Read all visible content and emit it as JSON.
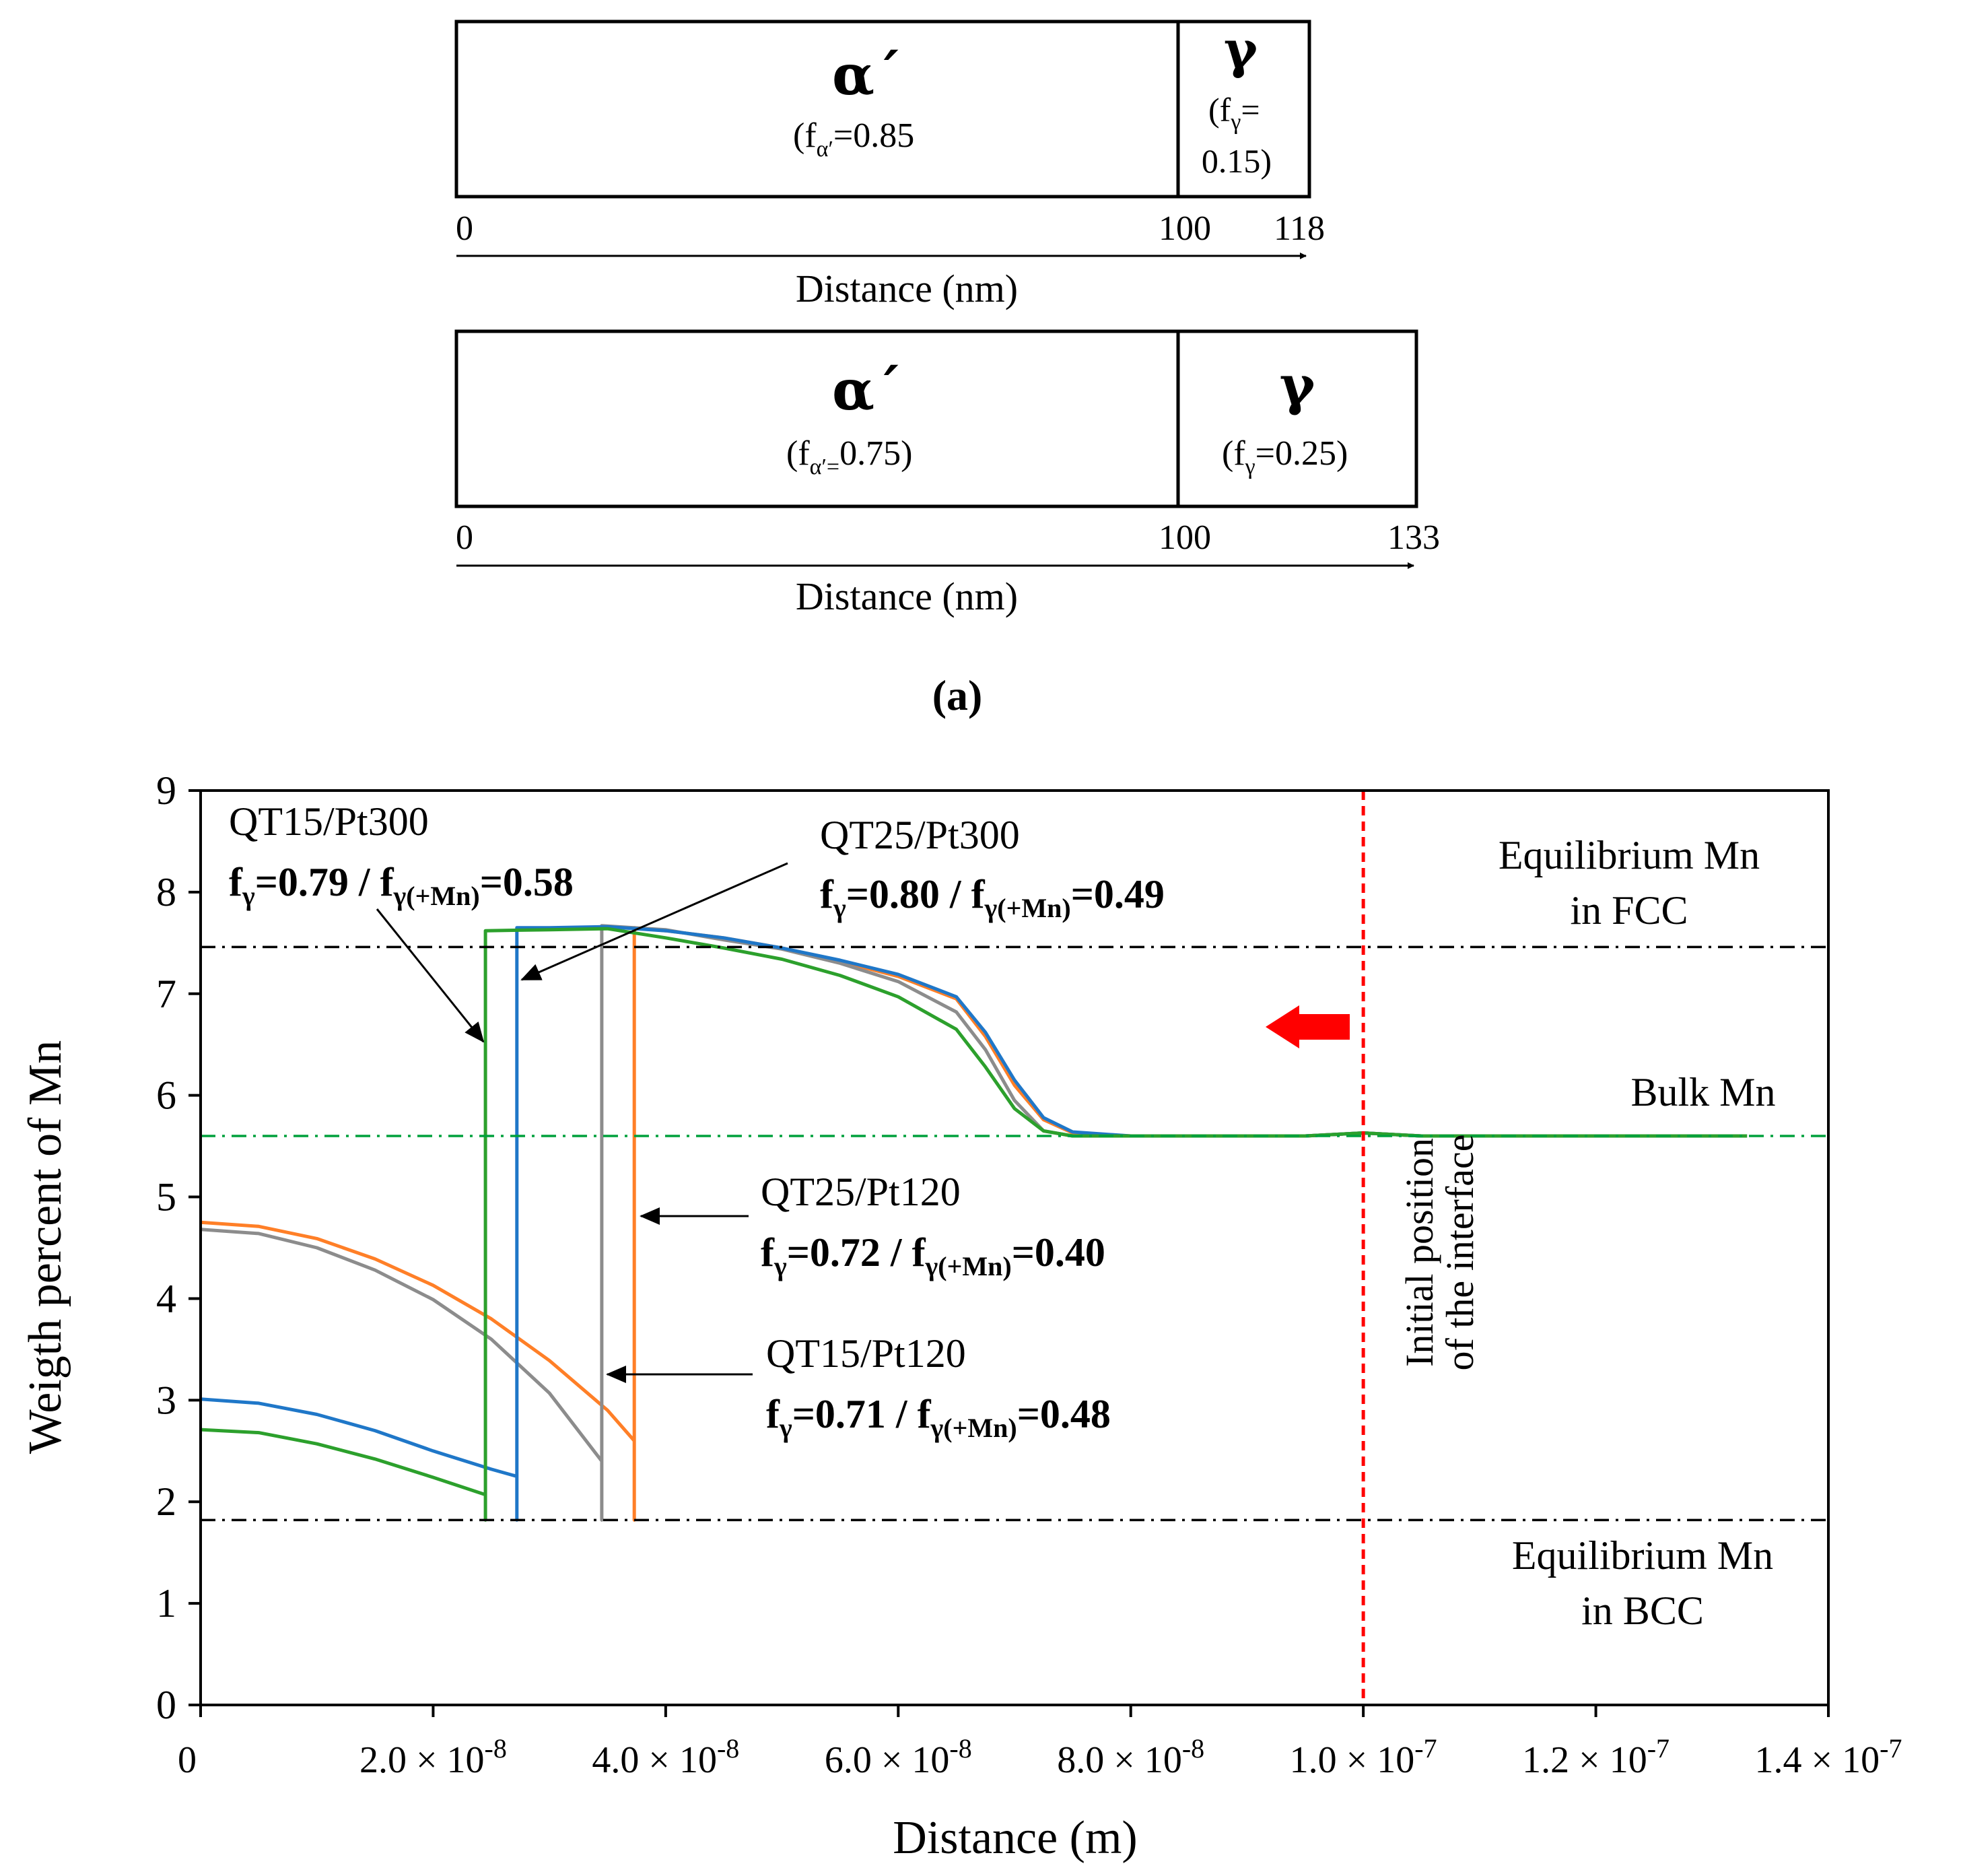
{
  "schematics": [
    {
      "phase_a": {
        "symbol": "α´",
        "fraction_label": "(fα′=0.85)",
        "sub": "α′",
        "value": "=0.85"
      },
      "phase_b": {
        "symbol": "γ",
        "line1_prefix": "(f",
        "line1_sub": "γ",
        "line1_suffix": "=",
        "line2": "0.15)"
      },
      "ticks": [
        "0",
        "100",
        "118"
      ],
      "axis_label": "Distance (nm)"
    },
    {
      "phase_a": {
        "symbol": "α´",
        "sub": "α′",
        "value": "0.75)",
        "prefix": "(f",
        "eq": "="
      },
      "phase_b": {
        "symbol": "γ",
        "prefix": "(f",
        "sub": "γ",
        "value": "=0.25)"
      },
      "ticks": [
        "0",
        "100",
        "133"
      ],
      "axis_label": "Distance (nm)"
    }
  ],
  "panel_label": "(a)",
  "chart_data": {
    "type": "line",
    "xlabel": "Distance (m)",
    "ylabel": "Weigth percent of Mn",
    "xlim": [
      0,
      1.4e-07
    ],
    "ylim": [
      0,
      9
    ],
    "x_ticks": [
      {
        "value": 0,
        "mant": "0",
        "exp": ""
      },
      {
        "value": 2e-08,
        "mant": "2.0 × 10",
        "exp": "-8"
      },
      {
        "value": 4e-08,
        "mant": "4.0 × 10",
        "exp": "-8"
      },
      {
        "value": 6e-08,
        "mant": "6.0 × 10",
        "exp": "-8"
      },
      {
        "value": 8e-08,
        "mant": "8.0 × 10",
        "exp": "-8"
      },
      {
        "value": 1e-07,
        "mant": "1.0 × 10",
        "exp": "-7"
      },
      {
        "value": 1.2e-07,
        "mant": "1.2 × 10",
        "exp": "-7"
      },
      {
        "value": 1.4e-07,
        "mant": "1.4 × 10",
        "exp": "-7"
      }
    ],
    "y_ticks": [
      "0",
      "1",
      "2",
      "3",
      "4",
      "5",
      "6",
      "7",
      "8",
      "9"
    ],
    "reference_lines": [
      {
        "name": "equilibrium-fcc",
        "y": 7.46,
        "color": "#000000",
        "label1": "Equilibrium Mn",
        "label2": "in FCC"
      },
      {
        "name": "bulk-mn",
        "y": 5.6,
        "color": "#00a03c",
        "label1": "Bulk Mn",
        "label2": ""
      },
      {
        "name": "equilibrium-bcc",
        "y": 1.82,
        "color": "#000000",
        "label1": "Equilibrium Mn",
        "label2": "in BCC"
      }
    ],
    "interface_line": {
      "x": 1e-07,
      "color": "#ff0000",
      "label1": "Initial position",
      "label2": "of  the interface"
    },
    "series": [
      {
        "color": "#ff7f27",
        "interface_x": 3.73e-08,
        "left": [
          [
            0,
            4.75
          ],
          [
            5e-09,
            4.71
          ],
          [
            1e-08,
            4.59
          ],
          [
            1.5e-08,
            4.39
          ],
          [
            2e-08,
            4.13
          ],
          [
            2.5e-08,
            3.8
          ],
          [
            3e-08,
            3.39
          ],
          [
            3.5e-08,
            2.9
          ],
          [
            3.73e-08,
            2.6
          ]
        ],
        "right": [
          [
            3.73e-08,
            7.65
          ],
          [
            4e-08,
            7.62
          ],
          [
            4.5e-08,
            7.55
          ],
          [
            5e-08,
            7.45
          ],
          [
            5.5e-08,
            7.32
          ],
          [
            6e-08,
            7.17
          ],
          [
            6.5e-08,
            6.95
          ],
          [
            6.75e-08,
            6.58
          ],
          [
            7e-08,
            6.1
          ],
          [
            7.25e-08,
            5.76
          ],
          [
            7.5e-08,
            5.63
          ],
          [
            8e-08,
            5.6
          ],
          [
            9.5e-08,
            5.6
          ],
          [
            1e-07,
            5.63
          ],
          [
            1.05e-07,
            5.6
          ],
          [
            1.33e-07,
            5.6
          ]
        ]
      },
      {
        "color": "#8c8c8c",
        "interface_x": 3.45e-08,
        "left": [
          [
            0,
            4.68
          ],
          [
            5e-09,
            4.64
          ],
          [
            1e-08,
            4.5
          ],
          [
            1.5e-08,
            4.28
          ],
          [
            2e-08,
            3.99
          ],
          [
            2.5e-08,
            3.6
          ],
          [
            3e-08,
            3.07
          ],
          [
            3.45e-08,
            2.4
          ]
        ],
        "right": [
          [
            3.45e-08,
            7.67
          ],
          [
            4e-08,
            7.63
          ],
          [
            4.5e-08,
            7.53
          ],
          [
            5e-08,
            7.44
          ],
          [
            5.5e-08,
            7.3
          ],
          [
            6e-08,
            7.12
          ],
          [
            6.5e-08,
            6.82
          ],
          [
            6.75e-08,
            6.45
          ],
          [
            7e-08,
            5.95
          ],
          [
            7.25e-08,
            5.65
          ],
          [
            7.5e-08,
            5.6
          ],
          [
            9.5e-08,
            5.6
          ],
          [
            1e-07,
            5.63
          ],
          [
            1.05e-07,
            5.6
          ],
          [
            1.33e-07,
            5.6
          ]
        ]
      },
      {
        "color": "#1f77c8",
        "interface_x": 2.72e-08,
        "left": [
          [
            0,
            3.01
          ],
          [
            5e-09,
            2.97
          ],
          [
            1e-08,
            2.86
          ],
          [
            1.5e-08,
            2.7
          ],
          [
            2e-08,
            2.5
          ],
          [
            2.5e-08,
            2.32
          ],
          [
            2.72e-08,
            2.25
          ]
        ],
        "right": [
          [
            2.72e-08,
            7.65
          ],
          [
            3e-08,
            7.65
          ],
          [
            3.5e-08,
            7.66
          ],
          [
            4e-08,
            7.62
          ],
          [
            4.5e-08,
            7.55
          ],
          [
            5e-08,
            7.45
          ],
          [
            5.5e-08,
            7.33
          ],
          [
            6e-08,
            7.19
          ],
          [
            6.5e-08,
            6.97
          ],
          [
            6.75e-08,
            6.62
          ],
          [
            7e-08,
            6.15
          ],
          [
            7.25e-08,
            5.78
          ],
          [
            7.5e-08,
            5.64
          ],
          [
            8e-08,
            5.6
          ],
          [
            9.5e-08,
            5.6
          ],
          [
            1e-07,
            5.63
          ],
          [
            1.05e-07,
            5.6
          ],
          [
            1.33e-07,
            5.6
          ]
        ]
      },
      {
        "color": "#2ca02c",
        "interface_x": 2.45e-08,
        "left": [
          [
            0,
            2.71
          ],
          [
            5e-09,
            2.68
          ],
          [
            1e-08,
            2.57
          ],
          [
            1.5e-08,
            2.42
          ],
          [
            2e-08,
            2.24
          ],
          [
            2.45e-08,
            2.07
          ]
        ],
        "right": [
          [
            2.45e-08,
            7.62
          ],
          [
            3e-08,
            7.63
          ],
          [
            3.5e-08,
            7.64
          ],
          [
            4e-08,
            7.55
          ],
          [
            4.5e-08,
            7.45
          ],
          [
            5e-08,
            7.34
          ],
          [
            5.5e-08,
            7.18
          ],
          [
            6e-08,
            6.97
          ],
          [
            6.5e-08,
            6.65
          ],
          [
            6.75e-08,
            6.28
          ],
          [
            7e-08,
            5.87
          ],
          [
            7.25e-08,
            5.65
          ],
          [
            7.5e-08,
            5.6
          ],
          [
            9.5e-08,
            5.6
          ],
          [
            1e-07,
            5.63
          ],
          [
            1.05e-07,
            5.6
          ],
          [
            1.33e-07,
            5.6
          ]
        ]
      }
    ],
    "annotations": [
      {
        "name": "qt15-pt300",
        "title": "QT15/Pt300",
        "v1": "=0.79 / f",
        "v2": "=0.58"
      },
      {
        "name": "qt25-pt300",
        "title": "QT25/Pt300",
        "v1": "=0.80 / f",
        "v2": "=0.49"
      },
      {
        "name": "qt25-pt120",
        "title": "QT25/Pt120",
        "v1": "=0.72 / f",
        "v2": "=0.40"
      },
      {
        "name": "qt15-pt120",
        "title": "QT15/Pt120",
        "v1": "=0.71 / f",
        "v2": "=0.48"
      }
    ],
    "sub_gamma": "γ",
    "sub_gamma_mn": "γ(+Mn)",
    "f_letter": "f",
    "arrow_color": "#ff0000"
  }
}
